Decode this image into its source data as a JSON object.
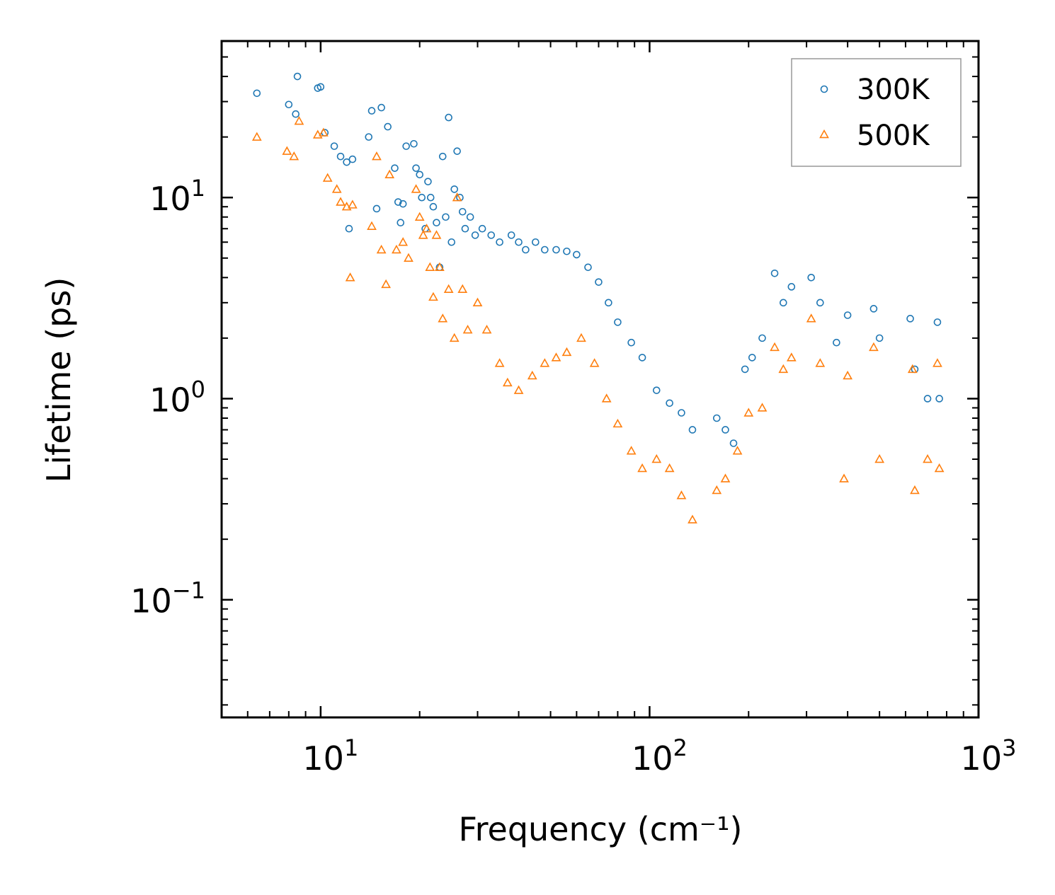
{
  "chart_data": {
    "type": "scatter",
    "xlabel": "Frequency (cm⁻¹)",
    "ylabel": "Lifetime (ps)",
    "xscale": "log",
    "yscale": "log",
    "xlim": [
      5,
      1000
    ],
    "ylim": [
      0.026,
      60
    ],
    "x_ticks": [
      {
        "value": 10,
        "base": "10",
        "exp": "1"
      },
      {
        "value": 100,
        "base": "10",
        "exp": "2"
      },
      {
        "value": 1000,
        "base": "10",
        "exp": "3"
      }
    ],
    "y_ticks": [
      {
        "value": 0.1,
        "base": "10",
        "exp": "−1"
      },
      {
        "value": 1,
        "base": "10",
        "exp": "0"
      },
      {
        "value": 10,
        "base": "10",
        "exp": "1"
      }
    ],
    "legend": {
      "position": "top-right"
    },
    "series": [
      {
        "name": "300K",
        "color": "#1f77b4",
        "marker": "circle",
        "points": [
          [
            6.4,
            33
          ],
          [
            8.0,
            29
          ],
          [
            8.4,
            26
          ],
          [
            8.5,
            40
          ],
          [
            9.8,
            35
          ],
          [
            10.0,
            35.5
          ],
          [
            10.3,
            21
          ],
          [
            11.0,
            18
          ],
          [
            11.5,
            16
          ],
          [
            12.0,
            15
          ],
          [
            12.5,
            15.5
          ],
          [
            12.2,
            7
          ],
          [
            14.0,
            20
          ],
          [
            14.3,
            27
          ],
          [
            14.8,
            8.8
          ],
          [
            15.3,
            28
          ],
          [
            16.0,
            22.5
          ],
          [
            16.8,
            14
          ],
          [
            17.2,
            9.5
          ],
          [
            17.5,
            7.5
          ],
          [
            17.8,
            9.3
          ],
          [
            18.2,
            18
          ],
          [
            19.2,
            18.5
          ],
          [
            19.5,
            14
          ],
          [
            20.0,
            13
          ],
          [
            20.3,
            10
          ],
          [
            20.8,
            7
          ],
          [
            21.2,
            12
          ],
          [
            21.6,
            10
          ],
          [
            22.0,
            9
          ],
          [
            22.5,
            7.5
          ],
          [
            23.0,
            4.5
          ],
          [
            23.5,
            16
          ],
          [
            24.5,
            25
          ],
          [
            24.0,
            8
          ],
          [
            25.0,
            6
          ],
          [
            25.5,
            11
          ],
          [
            26.0,
            17
          ],
          [
            26.5,
            10
          ],
          [
            27.0,
            8.5
          ],
          [
            27.5,
            7
          ],
          [
            28.5,
            8
          ],
          [
            29.5,
            6.5
          ],
          [
            31.0,
            7
          ],
          [
            33.0,
            6.5
          ],
          [
            35.0,
            6
          ],
          [
            38.0,
            6.5
          ],
          [
            40.0,
            6
          ],
          [
            42.0,
            5.5
          ],
          [
            45.0,
            6
          ],
          [
            48.0,
            5.5
          ],
          [
            52.0,
            5.5
          ],
          [
            56.0,
            5.4
          ],
          [
            60.0,
            5.2
          ],
          [
            65.0,
            4.5
          ],
          [
            70.0,
            3.8
          ],
          [
            75.0,
            3
          ],
          [
            80.0,
            2.4
          ],
          [
            88.0,
            1.9
          ],
          [
            95.0,
            1.6
          ],
          [
            105.0,
            1.1
          ],
          [
            115.0,
            0.95
          ],
          [
            125.0,
            0.85
          ],
          [
            135.0,
            0.7
          ],
          [
            160.0,
            0.8
          ],
          [
            170.0,
            0.7
          ],
          [
            180.0,
            0.6
          ],
          [
            195.0,
            1.4
          ],
          [
            205.0,
            1.6
          ],
          [
            220.0,
            2.0
          ],
          [
            240.0,
            4.2
          ],
          [
            255.0,
            3.0
          ],
          [
            270.0,
            3.6
          ],
          [
            310.0,
            4.0
          ],
          [
            330.0,
            3.0
          ],
          [
            370.0,
            1.9
          ],
          [
            400.0,
            2.6
          ],
          [
            480.0,
            2.8
          ],
          [
            500.0,
            2.0
          ],
          [
            620.0,
            2.5
          ],
          [
            640.0,
            1.4
          ],
          [
            700.0,
            1.0
          ],
          [
            750.0,
            2.4
          ],
          [
            760.0,
            1.0
          ]
        ]
      },
      {
        "name": "500K",
        "color": "#ff7f0e",
        "marker": "triangle",
        "points": [
          [
            6.4,
            20
          ],
          [
            7.9,
            17
          ],
          [
            8.3,
            16
          ],
          [
            8.6,
            24
          ],
          [
            9.8,
            20.5
          ],
          [
            10.2,
            21
          ],
          [
            10.5,
            12.5
          ],
          [
            11.2,
            11
          ],
          [
            11.5,
            9.5
          ],
          [
            12.0,
            9
          ],
          [
            12.5,
            9.2
          ],
          [
            12.3,
            4
          ],
          [
            14.3,
            7.2
          ],
          [
            14.8,
            16
          ],
          [
            15.3,
            5.5
          ],
          [
            15.8,
            3.7
          ],
          [
            16.2,
            13
          ],
          [
            17.0,
            5.5
          ],
          [
            17.8,
            6
          ],
          [
            18.5,
            5
          ],
          [
            19.5,
            11
          ],
          [
            20.0,
            8
          ],
          [
            20.5,
            6.5
          ],
          [
            21.0,
            7
          ],
          [
            21.5,
            4.5
          ],
          [
            22.0,
            3.2
          ],
          [
            22.5,
            6.5
          ],
          [
            23.0,
            4.5
          ],
          [
            23.5,
            2.5
          ],
          [
            24.5,
            3.5
          ],
          [
            25.5,
            2
          ],
          [
            26.0,
            10
          ],
          [
            27.0,
            3.5
          ],
          [
            28.0,
            2.2
          ],
          [
            30.0,
            3
          ],
          [
            32.0,
            2.2
          ],
          [
            35.0,
            1.5
          ],
          [
            37.0,
            1.2
          ],
          [
            40.0,
            1.1
          ],
          [
            44.0,
            1.3
          ],
          [
            48.0,
            1.5
          ],
          [
            52.0,
            1.6
          ],
          [
            56.0,
            1.7
          ],
          [
            62.0,
            2.0
          ],
          [
            68.0,
            1.5
          ],
          [
            74.0,
            1.0
          ],
          [
            80.0,
            0.75
          ],
          [
            88.0,
            0.55
          ],
          [
            95.0,
            0.45
          ],
          [
            105.0,
            0.5
          ],
          [
            115.0,
            0.45
          ],
          [
            125.0,
            0.33
          ],
          [
            135.0,
            0.25
          ],
          [
            160.0,
            0.35
          ],
          [
            170.0,
            0.4
          ],
          [
            185.0,
            0.55
          ],
          [
            200.0,
            0.85
          ],
          [
            220.0,
            0.9
          ],
          [
            240.0,
            1.8
          ],
          [
            255.0,
            1.4
          ],
          [
            270.0,
            1.6
          ],
          [
            310.0,
            2.5
          ],
          [
            330.0,
            1.5
          ],
          [
            390.0,
            0.4
          ],
          [
            400.0,
            1.3
          ],
          [
            480.0,
            1.8
          ],
          [
            500.0,
            0.5
          ],
          [
            630.0,
            1.4
          ],
          [
            640.0,
            0.35
          ],
          [
            700.0,
            0.5
          ],
          [
            750.0,
            1.5
          ],
          [
            760.0,
            0.45
          ]
        ]
      }
    ]
  }
}
